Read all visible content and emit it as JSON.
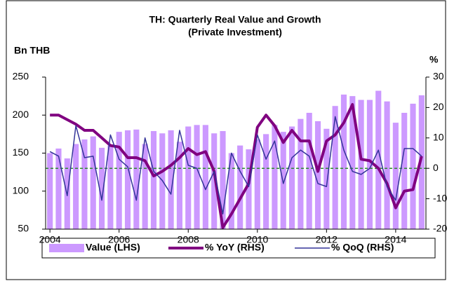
{
  "chart_data": {
    "type": "bar_line",
    "title": "TH: Quarterly Real Value and Growth",
    "subtitle": "(Private Investment)",
    "y_label": "Bn THB",
    "y2_label": "%",
    "categories": [
      "2004",
      null,
      null,
      null,
      null,
      null,
      null,
      null,
      "2006",
      null,
      null,
      null,
      null,
      null,
      null,
      null,
      "2008",
      null,
      null,
      null,
      null,
      null,
      null,
      null,
      "2010",
      null,
      null,
      null,
      null,
      null,
      null,
      null,
      "2012",
      null,
      null,
      null,
      null,
      null,
      null,
      null,
      "2014",
      null,
      null,
      null
    ],
    "series": [
      {
        "name": "Value (LHS)",
        "type": "bar",
        "axis": "y",
        "color": "#cc99ff",
        "values": [
          150,
          156,
          143,
          162,
          168,
          172,
          157,
          160,
          178,
          180,
          181,
          162,
          179,
          176,
          180,
          165,
          185,
          187,
          187,
          176,
          179,
          150,
          160,
          155,
          168,
          175,
          187,
          178,
          185,
          195,
          203,
          192,
          182,
          212,
          227,
          225,
          220,
          220,
          232,
          218,
          190,
          203,
          215,
          226
        ]
      },
      {
        "name": "% YoY (RHS)",
        "type": "line",
        "axis": "y2",
        "color": "#800080",
        "values": [
          17.5,
          17.5,
          16,
          14.5,
          12.5,
          12.5,
          10,
          7.5,
          7,
          3.5,
          3.5,
          2.5,
          -2.5,
          -1,
          1,
          3.5,
          6.5,
          4.5,
          5.5,
          -1,
          -19.5,
          -15,
          -10,
          -5,
          13.5,
          17.5,
          14,
          8.5,
          12.5,
          9,
          9,
          -1,
          9,
          11,
          15,
          21,
          3,
          2.5,
          0,
          -5,
          -13,
          -7.5,
          -7,
          4
        ]
      },
      {
        "name": "% QoQ (RHS)",
        "type": "line",
        "axis": "y2",
        "color": "#333399",
        "values": [
          5.5,
          4,
          -9,
          14,
          3.5,
          4,
          -10.5,
          11,
          3,
          0.5,
          -10.5,
          10,
          -1,
          -4,
          -8.5,
          12.5,
          1,
          0,
          -7,
          -1,
          -15,
          5,
          -1,
          -6,
          11,
          3,
          9,
          -5,
          3.5,
          6,
          4,
          -5,
          -6,
          17,
          6,
          -1,
          -2,
          0,
          6,
          -6,
          -10.5,
          6.5,
          6.5,
          4
        ]
      }
    ],
    "ylim": [
      50,
      250
    ],
    "yticks": [
      50,
      100,
      150,
      200,
      250
    ],
    "y2lim": [
      -20,
      30
    ],
    "y2ticks": [
      -20,
      -10,
      0,
      10,
      20,
      30
    ],
    "reference_line": {
      "axis": "y2",
      "value": 0,
      "color": "#2e8b2e"
    },
    "legend": "bottom"
  }
}
